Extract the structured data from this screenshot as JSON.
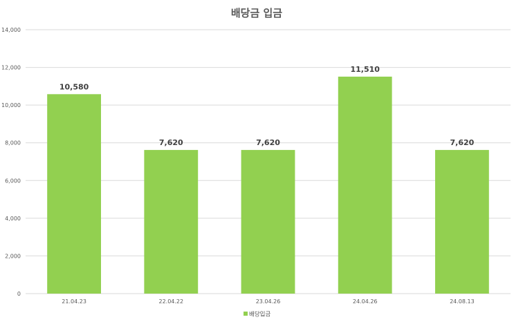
{
  "chart_data": {
    "type": "bar",
    "title": "배당금 입금",
    "xlabel": "",
    "ylabel": "",
    "categories": [
      "21.04.23",
      "22.04.22",
      "23.04.26",
      "24.04.26",
      "24.08.13"
    ],
    "series": [
      {
        "name": "배당입금",
        "values": [
          10580,
          7620,
          7620,
          11510,
          7620
        ],
        "labels": [
          "10,580",
          "7,620",
          "7,620",
          "11,510",
          "7,620"
        ]
      }
    ],
    "ylim": [
      0,
      14000
    ],
    "yticks": [
      "0",
      "2,000",
      "4,000",
      "6,000",
      "8,000",
      "10,000",
      "12,000",
      "14,000"
    ],
    "grid": true,
    "legend_position": "bottom",
    "bar_color": "#92d050",
    "grid_color": "#d9d9d9"
  }
}
